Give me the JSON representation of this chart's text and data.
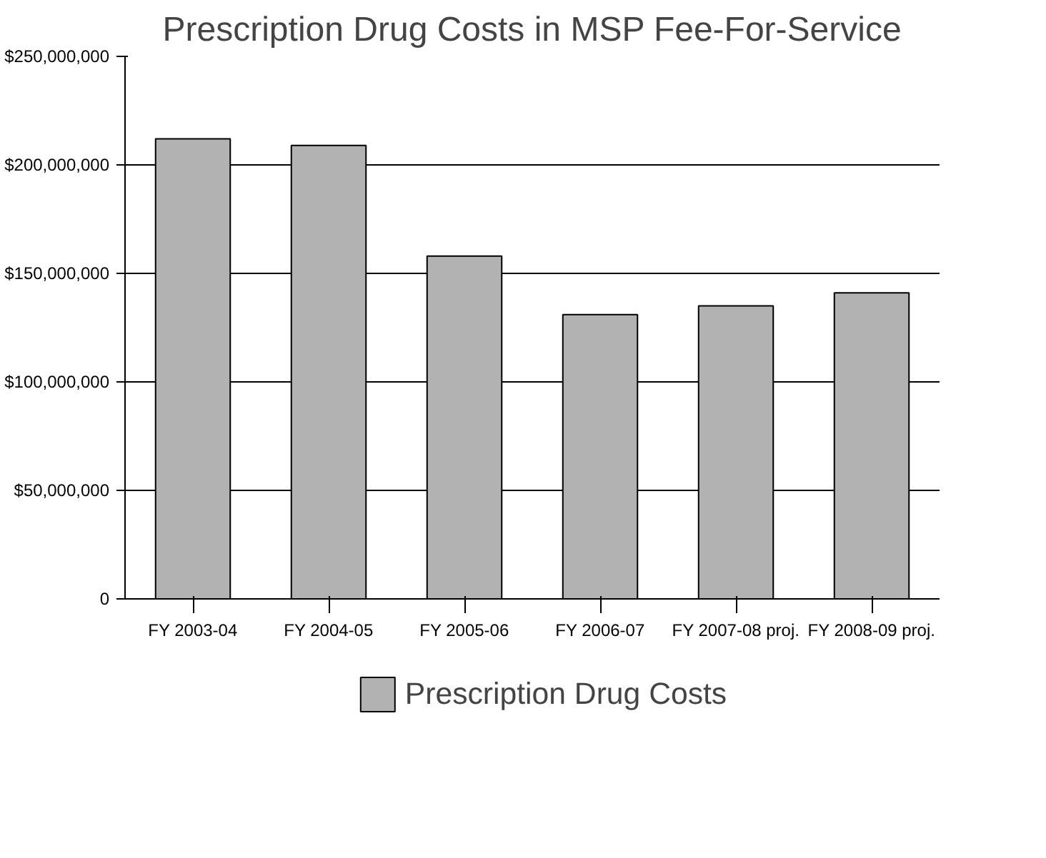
{
  "chart_data": {
    "type": "bar",
    "title": "Prescription Drug Costs in MSP Fee-For-Service",
    "categories": [
      "FY 2003-04",
      "FY 2004-05",
      "FY 2005-06",
      "FY 2006-07",
      "FY 2007-08 proj.",
      "FY 2008-09 proj."
    ],
    "series": [
      {
        "name": "Prescription Drug Costs",
        "color": "#b2b2b2",
        "values": [
          212000000,
          209000000,
          158000000,
          131000000,
          135000000,
          141000000
        ]
      }
    ],
    "ylim": [
      0,
      250000000
    ],
    "yticks": [
      {
        "value": 0,
        "label": "0"
      },
      {
        "value": 50000000,
        "label": "$50,000,000"
      },
      {
        "value": 100000000,
        "label": "$100,000,000"
      },
      {
        "value": 150000000,
        "label": "$150,000,000"
      },
      {
        "value": 200000000,
        "label": "$200,000,000"
      },
      {
        "value": 250000000,
        "label": "$250,000,000"
      }
    ],
    "grid": "y",
    "legend": "bottom"
  }
}
